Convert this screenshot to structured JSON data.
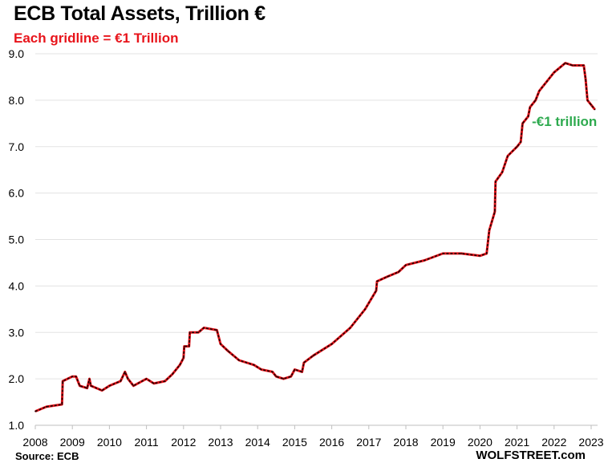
{
  "chart_data": {
    "type": "line",
    "title": "ECB Total Assets, Trillion €",
    "subtitle": "Each gridline = €1 Trillion",
    "source": "Source: ECB",
    "brand": "WOLFSTREET.com",
    "xlabel": "",
    "ylabel": "",
    "xlim": [
      2008,
      2023.15
    ],
    "ylim": [
      1.0,
      9.0
    ],
    "x_ticks": [
      "2008",
      "2009",
      "2010",
      "2011",
      "2012",
      "2013",
      "2014",
      "2015",
      "2016",
      "2017",
      "2018",
      "2019",
      "2020",
      "2021",
      "2022",
      "2023"
    ],
    "y_ticks": [
      "1.0",
      "2.0",
      "3.0",
      "4.0",
      "5.0",
      "6.0",
      "7.0",
      "8.0",
      "9.0"
    ],
    "grid": true,
    "line_color": "#e8141b",
    "overlay_color": "#1a0000",
    "annotation": {
      "text": "-€1 trillion",
      "color": "#2eaa4f",
      "x": 2021.4,
      "y": 7.55
    },
    "series": [
      {
        "x": [
          2008.0,
          2008.3,
          2008.72,
          2008.74,
          2009.0,
          2009.1,
          2009.2,
          2009.4,
          2009.46,
          2009.5,
          2009.8,
          2010.0,
          2010.3,
          2010.42,
          2010.5,
          2010.65,
          2011.0,
          2011.2,
          2011.5,
          2011.7,
          2011.9,
          2012.0,
          2012.02,
          2012.15,
          2012.17,
          2012.4,
          2012.55,
          2012.9,
          2013.0,
          2013.2,
          2013.5,
          2013.9,
          2014.1,
          2014.4,
          2014.5,
          2014.7,
          2014.9,
          2015.0,
          2015.2,
          2015.25,
          2015.5,
          2016.0,
          2016.5,
          2016.9,
          2017.2,
          2017.22,
          2017.5,
          2017.8,
          2018.0,
          2018.5,
          2019.0,
          2019.5,
          2020.0,
          2020.18,
          2020.25,
          2020.4,
          2020.42,
          2020.6,
          2020.75,
          2021.0,
          2021.1,
          2021.15,
          2021.3,
          2021.35,
          2021.5,
          2021.6,
          2022.0,
          2022.3,
          2022.5,
          2022.8,
          2022.85,
          2022.9,
          2023.0,
          2023.1
        ],
        "values": [
          1.3,
          1.4,
          1.45,
          1.95,
          2.05,
          2.05,
          1.85,
          1.8,
          2.0,
          1.85,
          1.75,
          1.85,
          1.95,
          2.15,
          2.0,
          1.85,
          2.0,
          1.9,
          1.95,
          2.1,
          2.3,
          2.45,
          2.7,
          2.7,
          3.0,
          3.0,
          3.1,
          3.05,
          2.75,
          2.6,
          2.4,
          2.3,
          2.2,
          2.15,
          2.05,
          2.0,
          2.05,
          2.2,
          2.15,
          2.35,
          2.5,
          2.75,
          3.1,
          3.5,
          3.9,
          4.1,
          4.2,
          4.3,
          4.45,
          4.55,
          4.7,
          4.7,
          4.65,
          4.7,
          5.2,
          5.6,
          6.25,
          6.45,
          6.8,
          7.0,
          7.1,
          7.5,
          7.65,
          7.85,
          8.0,
          8.2,
          8.6,
          8.8,
          8.75,
          8.75,
          8.45,
          8.0,
          7.9,
          7.8
        ]
      }
    ]
  }
}
